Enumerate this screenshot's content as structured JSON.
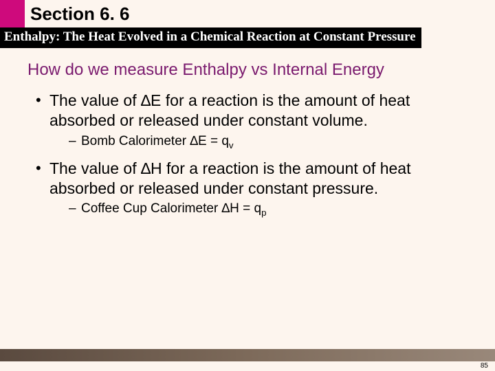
{
  "header": {
    "section_label": "Section 6. 6",
    "subtitle": "Enthalpy: The Heat Evolved in a Chemical Reaction at Constant Pressure"
  },
  "slide": {
    "heading": "How do we measure Enthalpy vs Internal Energy",
    "bullets": [
      {
        "text": "The value of ∆E for a reaction is the amount of heat absorbed or released under constant volume.",
        "sub": [
          {
            "prefix": "Bomb Calorimeter ∆E = q",
            "subscript": "v"
          }
        ]
      },
      {
        "text": "The value of ∆H for a reaction is the amount of heat absorbed or released under constant pressure.",
        "sub": [
          {
            "prefix": "Coffee Cup Calorimeter ∆H = q",
            "subscript": "p"
          }
        ]
      }
    ]
  },
  "footer": {
    "page_number": "85"
  },
  "colors": {
    "accent_magenta": "#ce0a7c",
    "heading_purple": "#7a1a6e",
    "background": "#fdf5ee",
    "footer_gradient_start": "#5a4a3f",
    "footer_gradient_end": "#99887a"
  }
}
